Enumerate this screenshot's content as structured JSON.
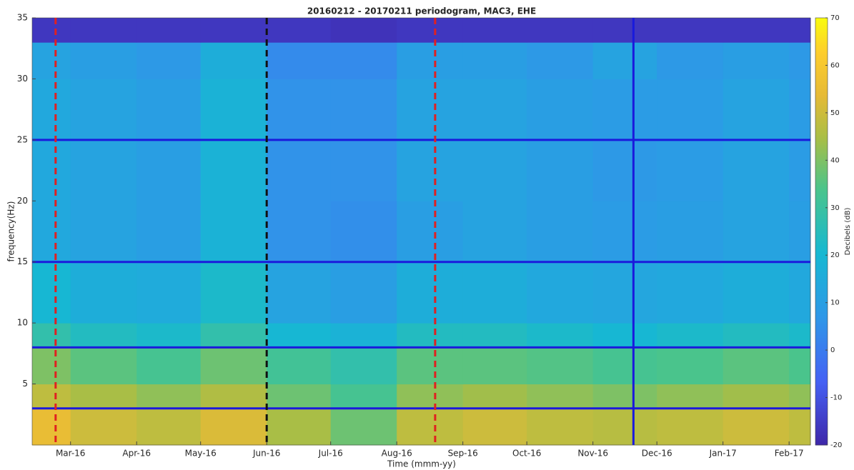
{
  "chart_data": {
    "type": "heatmap",
    "title": "20160212 - 20170211 periodogram, MAC3, EHE",
    "x_label": "Time (mmm-yy)",
    "y_label": "frequency(Hz)",
    "colorbar_label": "Decibels (dB)",
    "x_edges": [
      "2016-02-12",
      "2016-03",
      "2016-04",
      "2016-05",
      "2016-06",
      "2016-07",
      "2016-08",
      "2016-09",
      "2016-10",
      "2016-11",
      "2016-12",
      "2017-01",
      "2017-02",
      "2017-02-11"
    ],
    "y_edges": [
      0,
      3,
      5,
      8,
      10,
      15,
      20,
      25,
      30,
      33,
      35
    ],
    "values": [
      [
        55,
        50,
        48,
        52,
        45,
        38,
        48,
        50,
        48,
        47,
        48,
        50,
        48
      ],
      [
        48,
        45,
        42,
        46,
        38,
        33,
        42,
        44,
        42,
        40,
        42,
        44,
        42
      ],
      [
        40,
        36,
        33,
        38,
        32,
        28,
        36,
        36,
        35,
        33,
        34,
        36,
        34
      ],
      [
        28,
        24,
        22,
        28,
        20,
        18,
        24,
        24,
        22,
        20,
        22,
        24,
        22
      ],
      [
        20,
        16,
        15,
        22,
        12,
        10,
        16,
        16,
        14,
        13,
        14,
        16,
        14
      ],
      [
        14,
        12,
        10,
        18,
        6,
        5,
        10,
        12,
        10,
        9,
        10,
        12,
        10
      ],
      [
        14,
        12,
        10,
        18,
        6,
        6,
        12,
        12,
        10,
        8,
        9,
        12,
        9
      ],
      [
        14,
        12,
        10,
        18,
        6,
        6,
        12,
        12,
        10,
        9,
        9,
        12,
        9
      ],
      [
        12,
        10,
        8,
        16,
        4,
        4,
        10,
        10,
        8,
        12,
        8,
        10,
        8
      ],
      [
        -16,
        -16,
        -16,
        -16,
        -16,
        -17,
        -16,
        -16,
        -16,
        -16,
        -16,
        -16,
        -16
      ]
    ],
    "xlim": [
      "2016-02-12",
      "2017-02-11"
    ],
    "xticks": [
      {
        "value": "2016-03",
        "label": "Mar-16"
      },
      {
        "value": "2016-04",
        "label": "Apr-16"
      },
      {
        "value": "2016-05",
        "label": "May-16"
      },
      {
        "value": "2016-06",
        "label": "Jun-16"
      },
      {
        "value": "2016-07",
        "label": "Jul-16"
      },
      {
        "value": "2016-08",
        "label": "Aug-16"
      },
      {
        "value": "2016-09",
        "label": "Sep-16"
      },
      {
        "value": "2016-10",
        "label": "Oct-16"
      },
      {
        "value": "2016-11",
        "label": "Nov-16"
      },
      {
        "value": "2016-12",
        "label": "Dec-16"
      },
      {
        "value": "2017-01",
        "label": "Jan-17"
      },
      {
        "value": "2017-02",
        "label": "Feb-17"
      }
    ],
    "ylim": [
      0,
      35
    ],
    "yticks": [
      5,
      10,
      15,
      20,
      25,
      30,
      35
    ],
    "zlim": [
      -20,
      70
    ],
    "zticks": [
      -20,
      -10,
      0,
      10,
      20,
      30,
      40,
      50,
      60,
      70
    ],
    "hlines": {
      "color": "#1a1adc",
      "values": [
        3,
        8,
        15,
        25
      ]
    },
    "vlines": [
      {
        "x": "2016-02-23",
        "color": "#e02020"
      },
      {
        "x": "2016-06",
        "color": "#111111"
      },
      {
        "x": "2016-08-19",
        "color": "#e02020"
      },
      {
        "x": "2016-11-20",
        "color": "#1a1adc"
      }
    ]
  }
}
